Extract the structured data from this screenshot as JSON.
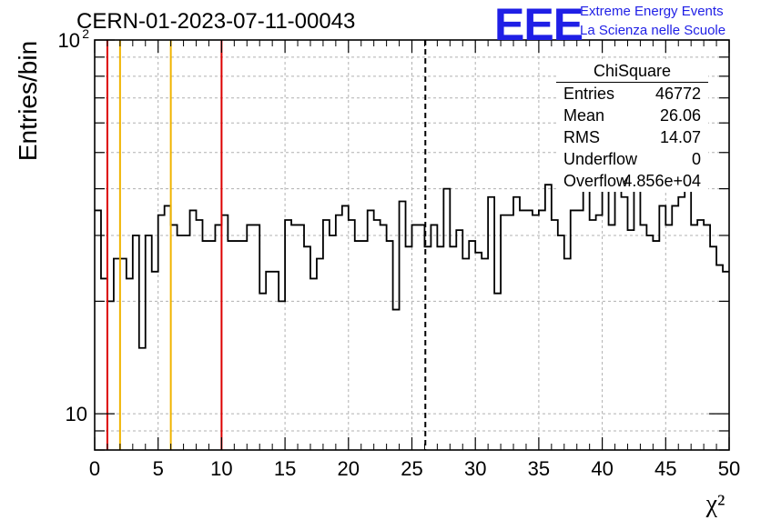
{
  "header": {
    "run_title": "CERN-01-2023-07-11-00043"
  },
  "logo": {
    "mark": "EEE",
    "line1": "Extreme Energy Events",
    "line2": "La Scienza nelle Scuole"
  },
  "stats_box": {
    "title": "ChiSquare",
    "rows": [
      {
        "label": "Entries",
        "value": "46772"
      },
      {
        "label": "Mean",
        "value": "26.06"
      },
      {
        "label": "RMS",
        "value": "14.07"
      },
      {
        "label": "Underflow",
        "value": "0"
      },
      {
        "label": "Overflow",
        "value": "4.856e+04"
      }
    ]
  },
  "chart_data": {
    "type": "histogram",
    "title": "CERN-01-2023-07-11-00043",
    "xlabel": "χ²",
    "ylabel": "Entries/bin",
    "xlim": [
      0,
      50
    ],
    "ylim": [
      8,
      100
    ],
    "yscale": "log",
    "grid": true,
    "x_ticks": [
      0,
      5,
      10,
      15,
      20,
      25,
      30,
      35,
      40,
      45,
      50
    ],
    "x_tick_labels": [
      "0",
      "5",
      "10",
      "15",
      "20",
      "25",
      "30",
      "35",
      "40",
      "45",
      "50"
    ],
    "y_tick_labels": [
      {
        "value": 10,
        "label": "10"
      },
      {
        "value": 100,
        "label": "10",
        "exponent": "2"
      }
    ],
    "bin_width": 0.5,
    "bin_start": 0,
    "values": [
      35,
      23,
      20,
      26,
      26,
      23,
      30,
      15,
      30,
      24,
      34,
      36,
      32,
      30,
      30,
      35,
      33,
      29,
      29,
      32,
      34,
      29,
      29,
      29,
      32,
      32,
      21,
      24,
      24,
      20,
      33,
      32,
      32,
      28,
      23,
      26,
      33,
      30,
      34,
      36,
      33,
      29,
      29,
      35,
      33,
      32,
      29,
      19,
      37,
      28,
      32,
      32,
      28,
      32,
      28,
      40,
      28,
      31,
      26,
      29,
      27,
      26,
      38,
      21,
      34,
      34,
      38,
      35,
      35,
      34,
      35,
      41,
      33,
      30,
      26,
      35,
      35,
      40,
      33,
      34,
      40,
      32,
      40,
      38,
      31,
      48,
      32,
      30,
      29,
      36,
      32,
      36,
      38,
      42,
      32,
      33,
      32,
      28,
      25,
      24
    ],
    "value_precision_note": "",
    "reference_lines": [
      {
        "x": 1,
        "color": "#dd0000",
        "style": "solid"
      },
      {
        "x": 2,
        "color": "#f0b400",
        "style": "solid"
      },
      {
        "x": 6,
        "color": "#f0b400",
        "style": "solid"
      },
      {
        "x": 10,
        "color": "#dd0000",
        "style": "solid"
      },
      {
        "x": 26.06,
        "color": "#000000",
        "style": "dashed"
      }
    ]
  }
}
